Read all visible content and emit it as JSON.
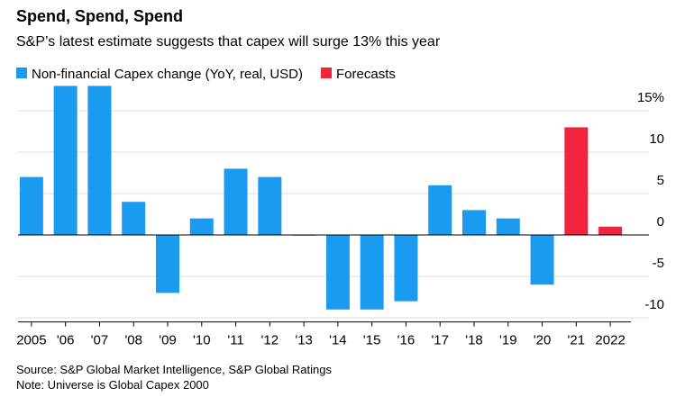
{
  "chart_data": {
    "type": "bar",
    "title": "Spend, Spend, Spend",
    "subtitle": "S&P’s latest estimate suggests that capex will surge 13% this year",
    "categories": [
      "2005",
      "'06",
      "'07",
      "'08",
      "'09",
      "'10",
      "'11",
      "'12",
      "'13",
      "'14",
      "'15",
      "'16",
      "'17",
      "'18",
      "'19",
      "'20",
      "'21",
      "2022"
    ],
    "series": [
      {
        "name": "Non-financial Capex change (YoY, real, USD)",
        "color": "#1a9bf0",
        "values": [
          7,
          18,
          18,
          4,
          -7,
          2,
          8,
          7,
          0,
          -9,
          -9,
          -8,
          6,
          3,
          2,
          -6,
          null,
          null
        ]
      },
      {
        "name": "Forecasts",
        "color": "#f0243f",
        "values": [
          null,
          null,
          null,
          null,
          null,
          null,
          null,
          null,
          null,
          null,
          null,
          null,
          null,
          null,
          null,
          null,
          13,
          1
        ]
      }
    ],
    "ylim": [
      -10.5,
      18
    ],
    "yticks": [
      {
        "value": 15,
        "label": "15%"
      },
      10,
      5,
      0,
      -5,
      -10
    ],
    "grid": true,
    "source": "Source: S&P Global Market Intelligence, S&P Global Ratings",
    "note": "Note: Universe is Global Capex 2000"
  }
}
